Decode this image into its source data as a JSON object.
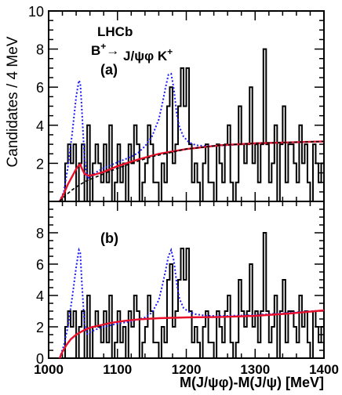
{
  "chart_data": [
    {
      "type": "histogram",
      "panel_label": "(a)",
      "experiment_label": "LHCb",
      "decay_label": {
        "base": "B",
        "sup1": "+",
        "arrow": "→",
        "mid": " J/ψφ K",
        "sup2": "+"
      },
      "ylabel": "Candidates / 4 MeV",
      "xlim": [
        1000,
        1400
      ],
      "ylim": [
        0,
        10
      ],
      "yticks": [
        2,
        4,
        6,
        8,
        10
      ],
      "bin_width": 4,
      "bins_start": 1000,
      "histogram_counts": [
        0,
        0,
        0,
        0,
        0,
        0,
        2,
        3,
        2,
        3,
        0,
        2,
        3,
        0,
        4,
        0,
        2,
        3,
        2,
        1,
        3,
        1,
        4,
        0,
        1,
        3,
        1,
        2,
        0,
        3,
        2,
        4,
        3,
        0,
        1,
        2,
        4,
        3,
        1,
        1,
        0,
        2,
        1,
        5,
        6,
        2,
        3,
        5,
        7,
        5,
        7,
        3,
        1,
        2,
        1,
        0,
        2,
        3,
        1,
        1,
        0,
        3,
        2,
        1,
        3,
        4,
        1,
        0,
        1,
        5,
        3,
        2,
        3,
        6,
        2,
        3,
        1,
        3,
        8,
        3,
        1,
        2,
        4,
        0,
        3,
        5,
        1,
        3,
        3,
        2,
        1,
        4,
        2,
        3,
        1,
        0,
        3,
        2,
        1,
        2
      ],
      "series": [
        {
          "name": "",
          "style": "blue-dashed",
          "x": [
            1016,
            1022,
            1028,
            1034,
            1040,
            1044,
            1046,
            1048,
            1052,
            1056,
            1062,
            1070,
            1080,
            1090,
            1100,
            1110,
            1120,
            1130,
            1140,
            1150,
            1160,
            1165,
            1170,
            1174,
            1178,
            1182,
            1186,
            1190,
            1196,
            1204,
            1214,
            1230,
            1260,
            1300,
            1350,
            1400
          ],
          "y": [
            0,
            0.5,
            1.8,
            3.5,
            5.5,
            6.35,
            6.2,
            5.0,
            2.3,
            1.2,
            1.35,
            1.55,
            1.75,
            1.9,
            2.05,
            2.2,
            2.35,
            2.55,
            2.9,
            3.4,
            4.3,
            5.1,
            6.0,
            6.65,
            6.7,
            5.9,
            4.6,
            3.9,
            3.4,
            3.1,
            2.95,
            2.9,
            2.95,
            3.05,
            3.1,
            3.15
          ]
        },
        {
          "name": "",
          "style": "red-solid",
          "x": [
            1016,
            1022,
            1028,
            1034,
            1040,
            1044,
            1046,
            1048,
            1052,
            1058,
            1066,
            1080,
            1100,
            1130,
            1160,
            1200,
            1250,
            1300,
            1350,
            1400
          ],
          "y": [
            0,
            0.4,
            0.9,
            1.3,
            1.7,
            1.9,
            1.95,
            1.75,
            1.45,
            1.35,
            1.4,
            1.55,
            1.85,
            2.2,
            2.5,
            2.75,
            2.95,
            3.05,
            3.1,
            3.15
          ]
        },
        {
          "name": "",
          "style": "black-dashed",
          "x": [
            1016,
            1024,
            1034,
            1044,
            1056,
            1070,
            1090,
            1120,
            1150,
            1200,
            1250,
            1300,
            1350,
            1400
          ],
          "y": [
            0,
            0.3,
            0.6,
            0.85,
            1.1,
            1.3,
            1.6,
            2.0,
            2.35,
            2.75,
            2.95,
            3.05,
            3.1,
            3.15
          ]
        }
      ]
    },
    {
      "type": "histogram",
      "panel_label": "(b)",
      "xlabel": "M(J/ψφ)-M(J/ψ) [MeV]",
      "xlim": [
        1000,
        1400
      ],
      "ylim": [
        0,
        10
      ],
      "xticks": [
        1000,
        1100,
        1200,
        1300,
        1400
      ],
      "yticks": [
        0,
        2,
        4,
        6,
        8
      ],
      "bin_width": 4,
      "bins_start": 1000,
      "histogram_counts": [
        0,
        0,
        0,
        0,
        0,
        0,
        2,
        3,
        2,
        3,
        0,
        2,
        3,
        0,
        4,
        0,
        2,
        3,
        2,
        1,
        3,
        1,
        4,
        0,
        1,
        3,
        1,
        2,
        0,
        3,
        2,
        4,
        3,
        0,
        1,
        2,
        4,
        3,
        1,
        1,
        0,
        2,
        1,
        5,
        6,
        2,
        3,
        5,
        7,
        5,
        7,
        3,
        1,
        2,
        1,
        0,
        2,
        3,
        1,
        1,
        0,
        3,
        2,
        1,
        3,
        4,
        1,
        0,
        1,
        5,
        3,
        2,
        3,
        6,
        2,
        3,
        1,
        3,
        8,
        3,
        1,
        2,
        4,
        0,
        3,
        5,
        1,
        3,
        3,
        2,
        1,
        4,
        2,
        3,
        1,
        0,
        3,
        2,
        1,
        2
      ],
      "series": [
        {
          "name": "",
          "style": "blue-dashed",
          "x": [
            1016,
            1022,
            1028,
            1034,
            1040,
            1044,
            1046,
            1048,
            1052,
            1056,
            1062,
            1070,
            1080,
            1090,
            1100,
            1120,
            1140,
            1150,
            1160,
            1165,
            1170,
            1174,
            1178,
            1182,
            1186,
            1190,
            1196,
            1204,
            1214,
            1230,
            1260,
            1300,
            1350,
            1400
          ],
          "y": [
            0,
            0.8,
            2.0,
            3.8,
            5.8,
            6.9,
            6.7,
            5.0,
            2.2,
            1.55,
            1.7,
            1.85,
            2.0,
            2.1,
            2.2,
            2.35,
            2.6,
            2.9,
            3.7,
            4.6,
            5.6,
            6.5,
            6.9,
            6.2,
            4.8,
            3.8,
            3.2,
            2.95,
            2.8,
            2.7,
            2.7,
            2.75,
            2.9,
            3.05
          ]
        },
        {
          "name": "",
          "style": "red-solid",
          "x": [
            1016,
            1020,
            1026,
            1032,
            1040,
            1050,
            1060,
            1075,
            1090,
            1110,
            1130,
            1160,
            1200,
            1250,
            1300,
            1350,
            1400
          ],
          "y": [
            0,
            0.4,
            0.85,
            1.2,
            1.5,
            1.75,
            1.95,
            2.1,
            2.25,
            2.38,
            2.47,
            2.55,
            2.6,
            2.63,
            2.7,
            2.85,
            3.05
          ]
        }
      ]
    }
  ]
}
